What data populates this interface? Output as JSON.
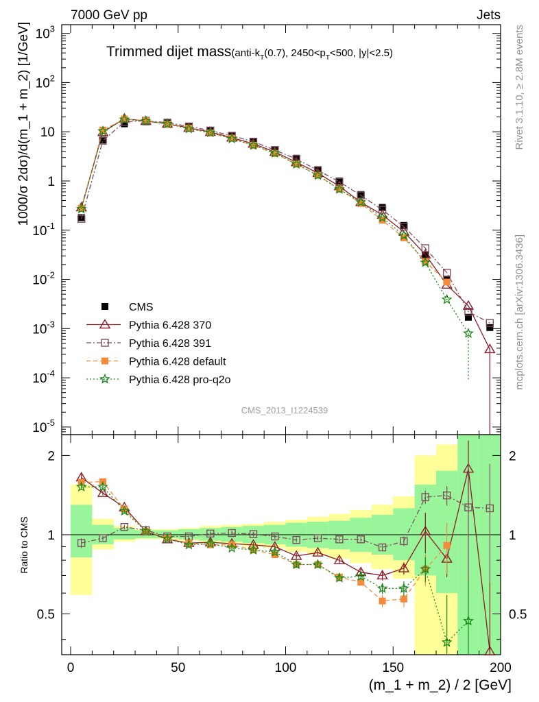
{
  "header": {
    "left": "7000 GeV pp",
    "right": "Jets"
  },
  "title": {
    "main": "Trimmed dijet mass",
    "sub_prefix": "(anti-k",
    "sub_kt_sub": "T",
    "sub_middle": "(0.7), 2450<p",
    "sub_pt_sub": "T",
    "sub_suffix": "<500, |y|<2.5)"
  },
  "side_labels": {
    "rivet": "Rivet 3.1.10, ≥ 2.8M events",
    "mcplots": "mcplots.cern.ch [arXiv:1306.3436]"
  },
  "analysis_id": "CMS_2013_I1224539",
  "axes": {
    "xlabel": "(m_1 + m_2) / 2 [GeV]",
    "ylabel_main": "1000/σ 2dσ)/d(m_1 + m_2) [1/GeV]",
    "ylabel_ratio": "Ratio to CMS",
    "xticks": [
      "0",
      "50",
      "100",
      "150",
      "200"
    ],
    "main_yticks": [
      {
        "base": "10",
        "exp": "3"
      },
      {
        "base": "10",
        "exp": "2"
      },
      {
        "base": "10",
        "exp": ""
      },
      {
        "base": "1",
        "exp": ""
      },
      {
        "base": "10",
        "exp": "-1"
      },
      {
        "base": "10",
        "exp": "-2"
      },
      {
        "base": "10",
        "exp": "-3"
      },
      {
        "base": "10",
        "exp": "-4"
      },
      {
        "base": "10",
        "exp": "-5"
      }
    ],
    "ratio_yticks": [
      "2",
      "1",
      "0.5"
    ]
  },
  "legend": {
    "position": "lower-left",
    "entries": [
      {
        "label": "CMS",
        "color": "#000000",
        "marker": "filled-square",
        "style": "none"
      },
      {
        "label": "Pythia 6.428 370",
        "color": "#8b1a24",
        "marker": "open-triangle",
        "style": "solid"
      },
      {
        "label": "Pythia 6.428 391",
        "color": "#7d4d5c",
        "marker": "open-square",
        "style": "dashdot"
      },
      {
        "label": "Pythia 6.428 default",
        "color": "#f58b3a",
        "marker": "filled-square",
        "style": "dashed"
      },
      {
        "label": "Pythia 6.428 pro-q2o",
        "color": "#178a17",
        "marker": "open-star",
        "style": "dotted"
      }
    ]
  },
  "chart_data": {
    "type": "line",
    "x_scale": "linear",
    "xlim": [
      -3,
      200
    ],
    "main": {
      "y_scale": "log",
      "ylim": [
        7e-06,
        1500
      ],
      "x": [
        5,
        15,
        25,
        35,
        45,
        55,
        65,
        75,
        85,
        95,
        105,
        115,
        125,
        135,
        145,
        155,
        165,
        175,
        185,
        195
      ],
      "series": [
        {
          "name": "CMS",
          "values": [
            0.18,
            6.8,
            14.5,
            16,
            15.5,
            13,
            10.5,
            8.2,
            6.2,
            4.3,
            2.9,
            1.7,
            1.0,
            0.53,
            0.29,
            0.125,
            0.031,
            0.0097,
            0.0017,
            0.00105
          ]
        },
        {
          "name": "Pythia 6.428 370",
          "values": [
            0.29,
            9.8,
            18.5,
            16.5,
            14.5,
            12,
            9.9,
            7.6,
            5.7,
            3.9,
            2.4,
            1.45,
            0.78,
            0.37,
            0.205,
            0.093,
            0.032,
            0.0078,
            0.0029,
            0.00038
          ]
        },
        {
          "name": "Pythia 6.428 391",
          "values": [
            0.17,
            6.6,
            15.8,
            16.8,
            15.3,
            12.8,
            10.6,
            8.3,
            6.3,
            4.25,
            2.8,
            1.65,
            0.96,
            0.51,
            0.26,
            0.118,
            0.043,
            0.0137,
            0.0022,
            0.0013
          ]
        },
        {
          "name": "Pythia 6.428 default",
          "values": [
            0.28,
            10.8,
            18.2,
            16.9,
            14.3,
            11.9,
            9.4,
            7.4,
            5.3,
            3.6,
            2.2,
            1.3,
            0.68,
            0.35,
            0.16,
            0.07,
            0.023,
            0.0088,
            null,
            null
          ]
        },
        {
          "name": "Pythia 6.428 pro-q2o",
          "values": [
            0.27,
            10.3,
            17.8,
            16.5,
            14.5,
            11.5,
            9.6,
            7.2,
            5.3,
            3.7,
            2.2,
            1.3,
            0.68,
            0.37,
            0.18,
            0.078,
            0.022,
            0.0039,
            0.0008,
            null
          ]
        }
      ]
    },
    "ratio": {
      "y_scale": "log",
      "ylim": [
        0.35,
        2.4
      ],
      "reference": "CMS",
      "x": [
        5,
        15,
        25,
        35,
        45,
        55,
        65,
        75,
        85,
        95,
        105,
        115,
        125,
        135,
        145,
        155,
        165,
        175,
        185,
        195
      ],
      "band_inner": [
        [
          0.82,
          1.3
        ],
        [
          0.92,
          1.09
        ],
        [
          0.96,
          1.06
        ],
        [
          0.97,
          1.04
        ],
        [
          0.97,
          1.04
        ],
        [
          0.96,
          1.05
        ],
        [
          0.95,
          1.06
        ],
        [
          0.94,
          1.07
        ],
        [
          0.93,
          1.08
        ],
        [
          0.92,
          1.09
        ],
        [
          0.9,
          1.11
        ],
        [
          0.89,
          1.12
        ],
        [
          0.88,
          1.13
        ],
        [
          0.86,
          1.16
        ],
        [
          0.84,
          1.19
        ],
        [
          0.8,
          1.26
        ],
        [
          0.7,
          1.55
        ],
        [
          0.6,
          1.75
        ],
        [
          0.35,
          2.4
        ],
        [
          0.35,
          2.4
        ]
      ],
      "band_outer": [
        [
          0.59,
          1.55
        ],
        [
          0.88,
          1.15
        ],
        [
          0.94,
          1.08
        ],
        [
          0.96,
          1.05
        ],
        [
          0.96,
          1.05
        ],
        [
          0.95,
          1.06
        ],
        [
          0.93,
          1.08
        ],
        [
          0.92,
          1.09
        ],
        [
          0.9,
          1.1
        ],
        [
          0.89,
          1.12
        ],
        [
          0.86,
          1.14
        ],
        [
          0.84,
          1.17
        ],
        [
          0.81,
          1.2
        ],
        [
          0.78,
          1.24
        ],
        [
          0.74,
          1.3
        ],
        [
          0.68,
          1.4
        ],
        [
          0.35,
          2.0
        ],
        [
          0.35,
          2.2
        ],
        [
          0.35,
          2.4
        ],
        [
          0.35,
          2.4
        ]
      ],
      "series": [
        {
          "name": "Pythia 6.428 370",
          "values": [
            1.65,
            1.44,
            1.27,
            1.03,
            0.96,
            0.93,
            0.935,
            0.925,
            0.915,
            0.9,
            0.83,
            0.855,
            0.8,
            0.72,
            0.7,
            0.745,
            1.03,
            0.81,
            1.78,
            0.36
          ],
          "errors": [
            0.05,
            0.03,
            0.02,
            0.02,
            0.02,
            0.02,
            0.02,
            0.02,
            0.02,
            0.02,
            0.02,
            0.02,
            0.02,
            0.02,
            0.03,
            0.04,
            0.18,
            0.12,
            0.5,
            0.3
          ]
        },
        {
          "name": "Pythia 6.428 391",
          "values": [
            0.93,
            0.97,
            1.07,
            1.04,
            0.985,
            0.985,
            1.01,
            1.015,
            1.005,
            0.985,
            0.955,
            0.97,
            0.96,
            0.96,
            0.895,
            0.945,
            1.39,
            1.41,
            1.27,
            1.26
          ],
          "errors": [
            0.04,
            0.02,
            0.02,
            0.02,
            0.02,
            0.02,
            0.02,
            0.02,
            0.02,
            0.02,
            0.02,
            0.02,
            0.02,
            0.02,
            0.03,
            0.04,
            0.08,
            0.12,
            0.6,
            0.6
          ]
        },
        {
          "name": "Pythia 6.428 default",
          "values": [
            1.58,
            1.59,
            1.25,
            1.03,
            0.97,
            0.93,
            0.915,
            0.915,
            0.875,
            0.84,
            0.77,
            0.77,
            0.69,
            0.66,
            0.56,
            0.57,
            0.74,
            0.91,
            null,
            null
          ],
          "errors": [
            0.04,
            0.03,
            0.02,
            0.02,
            0.02,
            0.02,
            0.02,
            0.02,
            0.02,
            0.02,
            0.02,
            0.02,
            0.02,
            0.02,
            0.03,
            0.04,
            0.1,
            0.2,
            null,
            null
          ]
        },
        {
          "name": "Pythia 6.428 pro-q2o",
          "values": [
            1.52,
            1.52,
            1.23,
            1.03,
            0.965,
            0.915,
            0.925,
            0.89,
            0.875,
            0.86,
            0.77,
            0.77,
            0.685,
            0.695,
            0.625,
            0.625,
            0.74,
            0.39,
            0.47,
            null
          ],
          "errors": [
            0.04,
            0.03,
            0.02,
            0.02,
            0.02,
            0.02,
            0.02,
            0.02,
            0.02,
            0.02,
            0.02,
            0.02,
            0.02,
            0.02,
            0.03,
            0.04,
            0.08,
            0.2,
            0.2,
            null
          ]
        }
      ]
    }
  }
}
